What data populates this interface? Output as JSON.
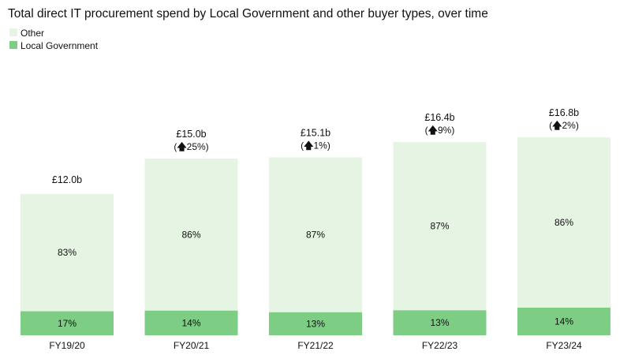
{
  "chart_data": {
    "type": "bar",
    "stacked": true,
    "title": "Total direct IT procurement spend by Local Government and other buyer types, over time",
    "xlabel": "",
    "ylabel": "",
    "ylim": [
      0,
      18
    ],
    "categories": [
      "FY19/20",
      "FY20/21",
      "FY21/22",
      "FY22/23",
      "FY23/24"
    ],
    "totals": [
      12.0,
      15.0,
      15.1,
      16.4,
      16.8
    ],
    "total_labels": [
      "£12.0b",
      "£15.0b",
      "£15.1b",
      "£16.4b",
      "£16.8b"
    ],
    "growth_labels": [
      "",
      "25%",
      "1%",
      "9%",
      "2%"
    ],
    "growth_arrow": "🡅",
    "series": [
      {
        "name": "Local Government",
        "color": "#7dcd85",
        "percents": [
          17,
          14,
          13,
          13,
          14
        ],
        "labels": [
          "17%",
          "14%",
          "13%",
          "13%",
          "14%"
        ]
      },
      {
        "name": "Other",
        "color": "#e6f4e3",
        "percents": [
          83,
          86,
          87,
          87,
          86
        ],
        "labels": [
          "83%",
          "86%",
          "87%",
          "87%",
          "86%"
        ]
      }
    ],
    "legend": {
      "position": "top-left",
      "entries": [
        "Other",
        "Local Government"
      ]
    }
  }
}
